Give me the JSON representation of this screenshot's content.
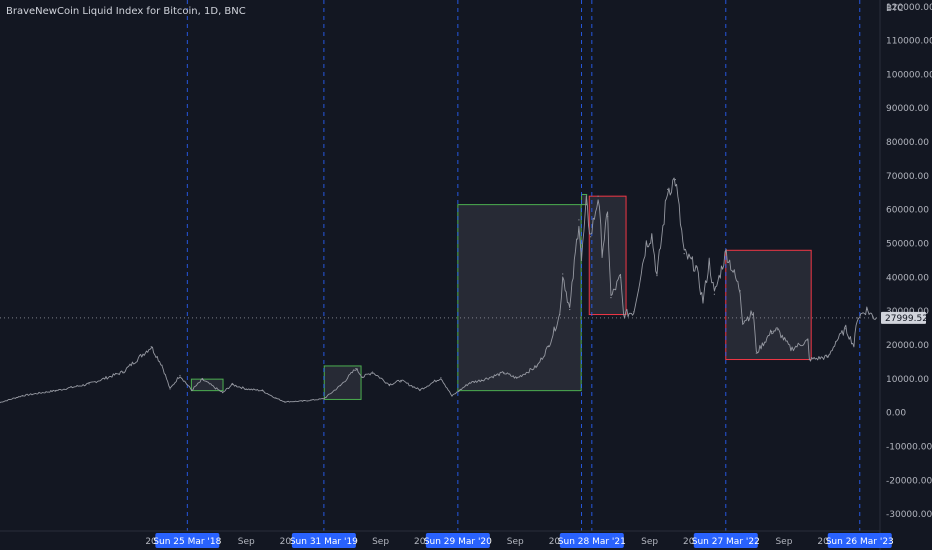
{
  "chart_data": {
    "type": "line",
    "title": "BraveNewCoin Liquid Index for Bitcoin, 1D, BNC",
    "currency_label": "BTC",
    "colors": {
      "background": "#131722",
      "price_line": "#9598a1",
      "vline": "#2962ff",
      "green_box": "#4caf50",
      "red_box": "#f23645",
      "box_fill": "#434651",
      "tag_blue": "#2962ff",
      "price_tag": "#d1d4dc",
      "axis_text": "#b2b5be"
    },
    "ylim": [
      -35000,
      122000
    ],
    "y_ticks": [
      "120000.00",
      "110000.00",
      "100000.00",
      "90000.00",
      "80000.00",
      "70000.00",
      "60000.00",
      "50000.00",
      "40000.00",
      "30000.00",
      "20000.00",
      "10000.00",
      "0.00",
      "-10000.00",
      "-20000.00",
      "-30000.00"
    ],
    "x_range": [
      "2016-11-01",
      "2023-05-20"
    ],
    "x_ticks": [
      {
        "date": "2018-01-01",
        "label": "2018"
      },
      {
        "date": "2018-09-01",
        "label": "Sep"
      },
      {
        "date": "2019-01-01",
        "label": "2019"
      },
      {
        "date": "2019-09-01",
        "label": "Sep"
      },
      {
        "date": "2020-01-01",
        "label": "2020"
      },
      {
        "date": "2020-09-01",
        "label": "Sep"
      },
      {
        "date": "2021-01-01",
        "label": "2021"
      },
      {
        "date": "2021-09-01",
        "label": "Sep"
      },
      {
        "date": "2022-01-01",
        "label": "2022"
      },
      {
        "date": "2022-09-01",
        "label": "Sep"
      },
      {
        "date": "2023-01-01",
        "label": "2023"
      }
    ],
    "markers": [
      {
        "date": "2018-03-25",
        "label": "Sun 25 Mar '18"
      },
      {
        "date": "2019-03-31",
        "label": "Sun 31 Mar '19"
      },
      {
        "date": "2020-03-29",
        "label": "Sun 29 Mar '20"
      },
      {
        "date": "2021-03-28",
        "label": "Sun 28 Mar '21"
      },
      {
        "date": "2022-03-27",
        "label": "Sun 27 Mar '22"
      },
      {
        "date": "2023-03-26",
        "label": "Sun 26 Mar '23"
      }
    ],
    "extra_vlines": [
      "2021-02-28"
    ],
    "current_price": {
      "value": 27999.52,
      "label": "27999.52"
    },
    "boxes": [
      {
        "color": "green",
        "x0": "2018-04-05",
        "x1": "2018-06-30",
        "y0": 6500,
        "y1": 9900
      },
      {
        "color": "green",
        "x0": "2019-04-01",
        "x1": "2019-07-10",
        "y0": 3900,
        "y1": 13800
      },
      {
        "color": "green",
        "x0": "2020-03-29",
        "x1": "2021-02-27",
        "y0": 6500,
        "y1": 61500
      },
      {
        "color": "green",
        "x0": "2021-02-28",
        "x1": "2021-03-14",
        "y0": 61500,
        "y1": 64500
      },
      {
        "color": "red",
        "x0": "2021-03-21",
        "x1": "2021-06-29",
        "y0": 29000,
        "y1": 64000
      },
      {
        "color": "red",
        "x0": "2022-03-27",
        "x1": "2022-11-14",
        "y0": 15700,
        "y1": 48000
      }
    ],
    "series": [
      {
        "values": [
          [
            "2016-11-01",
            3000
          ],
          [
            "2017-01-01",
            5000
          ],
          [
            "2017-04-01",
            6500
          ],
          [
            "2017-07-01",
            8500
          ],
          [
            "2017-10-01",
            12000
          ],
          [
            "2017-12-17",
            19500
          ],
          [
            "2018-01-15",
            14000
          ],
          [
            "2018-02-06",
            7000
          ],
          [
            "2018-03-05",
            11000
          ],
          [
            "2018-04-06",
            6600
          ],
          [
            "2018-05-05",
            9800
          ],
          [
            "2018-06-29",
            5900
          ],
          [
            "2018-07-25",
            8300
          ],
          [
            "2018-09-01",
            7000
          ],
          [
            "2018-10-15",
            6500
          ],
          [
            "2018-11-20",
            4300
          ],
          [
            "2018-12-15",
            3200
          ],
          [
            "2019-02-01",
            3400
          ],
          [
            "2019-03-31",
            4100
          ],
          [
            "2019-05-15",
            8000
          ],
          [
            "2019-06-26",
            13000
          ],
          [
            "2019-07-15",
            10500
          ],
          [
            "2019-08-10",
            12000
          ],
          [
            "2019-09-25",
            8300
          ],
          [
            "2019-10-26",
            9500
          ],
          [
            "2019-12-17",
            6700
          ],
          [
            "2020-02-12",
            10300
          ],
          [
            "2020-03-13",
            4900
          ],
          [
            "2020-04-30",
            8800
          ],
          [
            "2020-06-01",
            9600
          ],
          [
            "2020-08-01",
            11800
          ],
          [
            "2020-09-05",
            10200
          ],
          [
            "2020-10-31",
            13800
          ],
          [
            "2020-11-30",
            19500
          ],
          [
            "2020-12-31",
            29000
          ],
          [
            "2021-01-08",
            41000
          ],
          [
            "2021-01-27",
            30500
          ],
          [
            "2021-02-21",
            57000
          ],
          [
            "2021-02-28",
            45000
          ],
          [
            "2021-03-13",
            61500
          ],
          [
            "2021-03-25",
            52000
          ],
          [
            "2021-04-14",
            64000
          ],
          [
            "2021-04-25",
            48000
          ],
          [
            "2021-05-10",
            58000
          ],
          [
            "2021-05-19",
            34000
          ],
          [
            "2021-06-14",
            40000
          ],
          [
            "2021-06-22",
            29000
          ],
          [
            "2021-07-20",
            29800
          ],
          [
            "2021-08-23",
            50000
          ],
          [
            "2021-09-07",
            52500
          ],
          [
            "2021-09-21",
            40500
          ],
          [
            "2021-10-20",
            66000
          ],
          [
            "2021-11-10",
            68900
          ],
          [
            "2021-12-04",
            47000
          ],
          [
            "2022-01-05",
            43000
          ],
          [
            "2022-01-24",
            33000
          ],
          [
            "2022-02-10",
            44500
          ],
          [
            "2022-02-24",
            35000
          ],
          [
            "2022-03-28",
            47500
          ],
          [
            "2022-05-05",
            36000
          ],
          [
            "2022-05-12",
            27000
          ],
          [
            "2022-06-10",
            29500
          ],
          [
            "2022-06-18",
            17600
          ],
          [
            "2022-07-30",
            24000
          ],
          [
            "2022-08-14",
            24500
          ],
          [
            "2022-09-20",
            18800
          ],
          [
            "2022-11-05",
            21300
          ],
          [
            "2022-11-09",
            15700
          ],
          [
            "2022-12-31",
            16500
          ],
          [
            "2023-01-20",
            21000
          ],
          [
            "2023-02-16",
            24800
          ],
          [
            "2023-03-10",
            19800
          ],
          [
            "2023-03-19",
            28000
          ],
          [
            "2023-04-14",
            30500
          ],
          [
            "2023-04-30",
            28500
          ],
          [
            "2023-05-10",
            27999.52
          ]
        ]
      }
    ]
  }
}
